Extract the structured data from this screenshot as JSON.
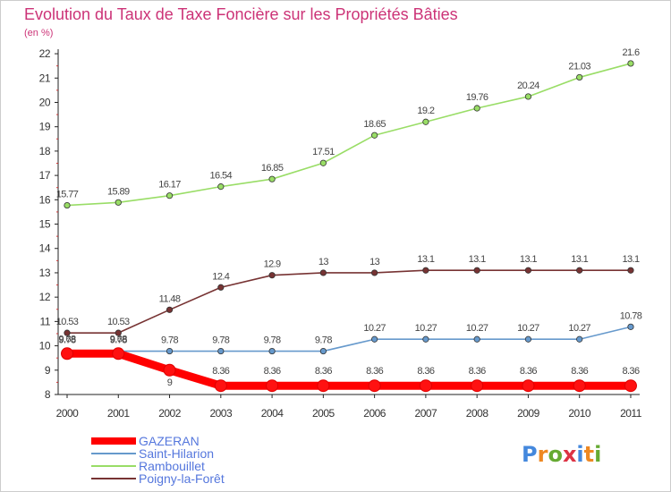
{
  "chart_data": {
    "type": "line",
    "title": "Evolution du Taux de Taxe Foncière sur les Propriétés Bâties",
    "subtitle": "(en %)",
    "xlabel": "",
    "ylabel": "(en %)",
    "ylim": [
      8,
      22
    ],
    "yticks": [
      "8",
      "9",
      "10",
      "11",
      "12",
      "13",
      "14",
      "15",
      "16",
      "17",
      "18",
      "19",
      "20",
      "21",
      "22"
    ],
    "categories": [
      "2000",
      "2001",
      "2002",
      "2003",
      "2004",
      "2005",
      "2006",
      "2007",
      "2008",
      "2009",
      "2010",
      "2011"
    ],
    "series": [
      {
        "name": "GAZERAN",
        "color": "#ff0000",
        "values": [
          9.68,
          9.68,
          9,
          8.36,
          8.36,
          8.36,
          8.36,
          8.36,
          8.36,
          8.36,
          8.36,
          8.36
        ],
        "labels": [
          "9.68",
          "9.68",
          "9",
          "8.36",
          "8.36",
          "8.36",
          "8.36",
          "8.36",
          "8.36",
          "8.36",
          "8.36",
          "8.36"
        ]
      },
      {
        "name": "Saint-Hilarion",
        "color": "#6699cc",
        "values": [
          9.78,
          9.78,
          9.78,
          9.78,
          9.78,
          9.78,
          10.27,
          10.27,
          10.27,
          10.27,
          10.27,
          10.78
        ],
        "labels": [
          "9.78",
          "9.78",
          "9.78",
          "9.78",
          "9.78",
          "9.78",
          "10.27",
          "10.27",
          "10.27",
          "10.27",
          "10.27",
          "10.78"
        ]
      },
      {
        "name": "Rambouillet",
        "color": "#99dd66",
        "values": [
          15.77,
          15.89,
          16.17,
          16.54,
          16.85,
          17.51,
          18.65,
          19.2,
          19.76,
          20.24,
          21.03,
          21.6
        ],
        "labels": [
          "15.77",
          "15.89",
          "16.17",
          "16.54",
          "16.85",
          "17.51",
          "18.65",
          "19.2",
          "19.76",
          "20.24",
          "21.03",
          "21.6"
        ]
      },
      {
        "name": "Poigny-la-Forêt",
        "color": "#773333",
        "values": [
          10.53,
          10.53,
          11.48,
          12.4,
          12.9,
          13,
          13,
          13.1,
          13.1,
          13.1,
          13.1,
          13.1
        ],
        "labels": [
          "10.53",
          "10.53",
          "11.48",
          "12.4",
          "12.9",
          "13",
          "13",
          "13.1",
          "13.1",
          "13.1",
          "13.1",
          "13.1"
        ]
      }
    ],
    "grid": false,
    "legend": "bottom-left"
  },
  "branding": {
    "logo_letters": [
      "P",
      "r",
      "o",
      "x",
      "i",
      "t",
      "i"
    ],
    "logo_colors": [
      "#4488dd",
      "#ee8822",
      "#66aa33",
      "#dd3344",
      "#4488dd",
      "#ee8822",
      "#66aa33"
    ]
  }
}
